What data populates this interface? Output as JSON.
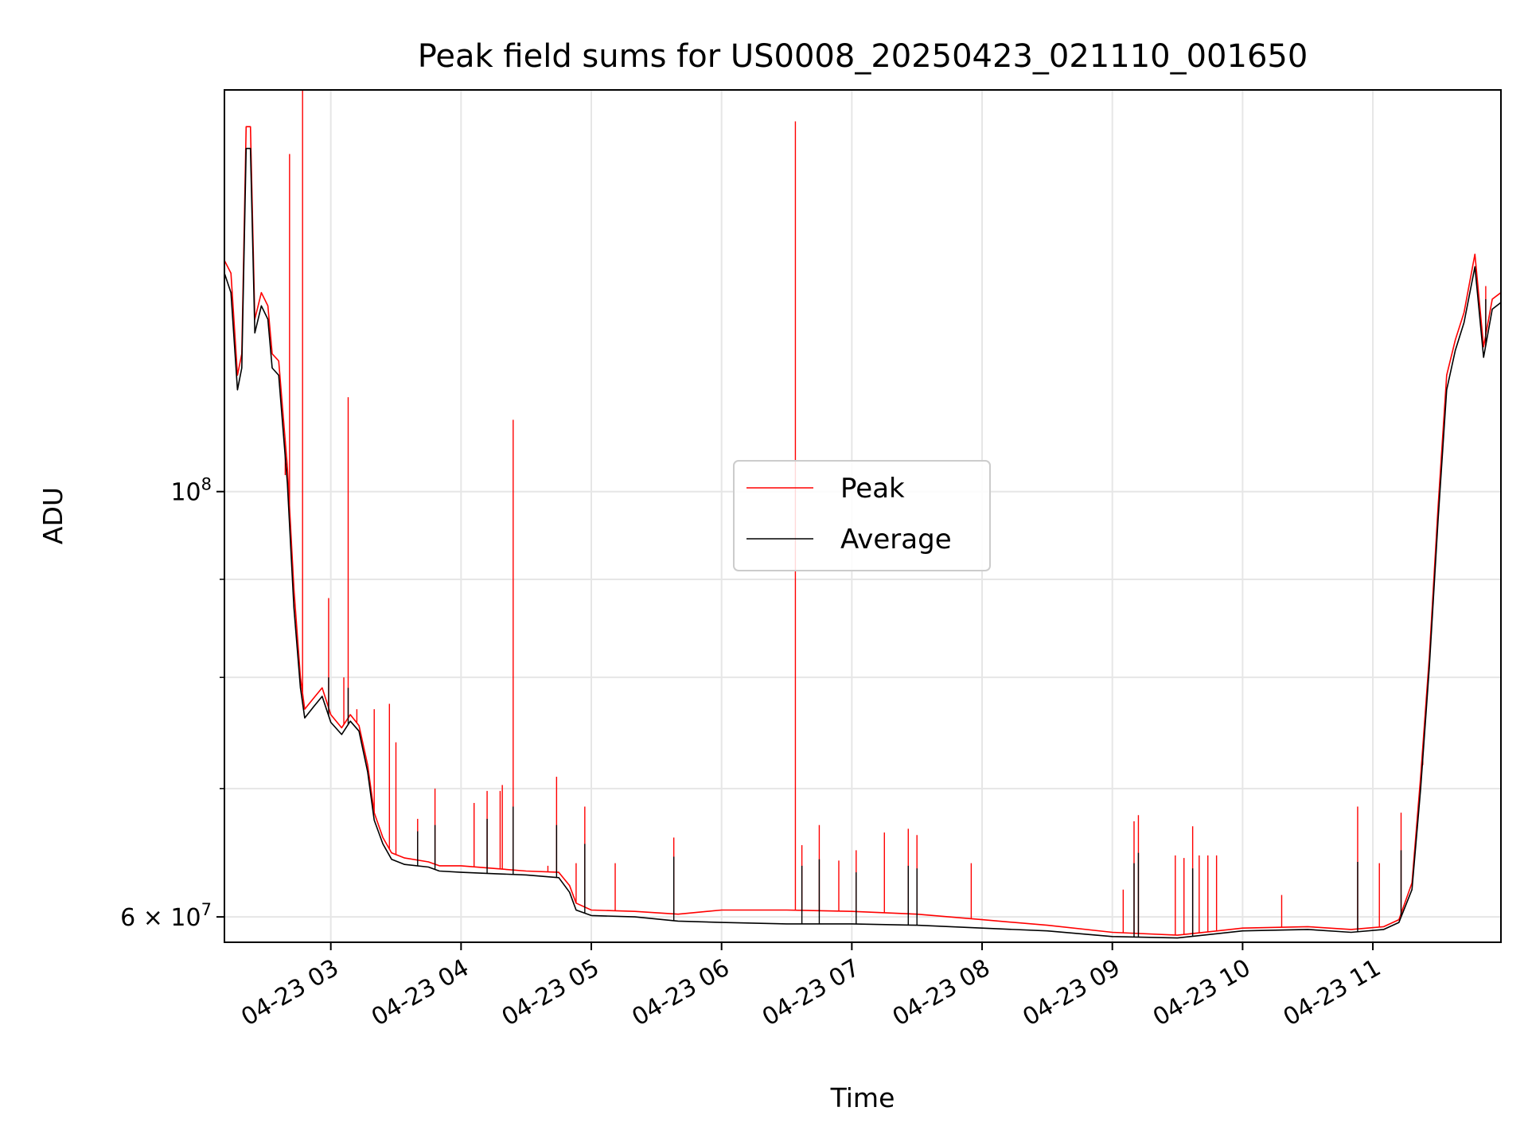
{
  "chart_data": {
    "type": "line",
    "title": "Peak field sums for US0008_20250423_021110_001650",
    "xlabel": "Time",
    "ylabel": "ADU",
    "y_scale": "log",
    "x_range": [
      "2025-04-23 02:11",
      "2025-04-23 11:59"
    ],
    "ylim": [
      58200000,
      162000000
    ],
    "grid": true,
    "legend_position": "center",
    "x_ticks": [
      {
        "t": "2025-04-23 03:00",
        "label": "04-23 03"
      },
      {
        "t": "2025-04-23 04:00",
        "label": "04-23 04"
      },
      {
        "t": "2025-04-23 05:00",
        "label": "04-23 05"
      },
      {
        "t": "2025-04-23 06:00",
        "label": "04-23 06"
      },
      {
        "t": "2025-04-23 07:00",
        "label": "04-23 07"
      },
      {
        "t": "2025-04-23 08:00",
        "label": "04-23 08"
      },
      {
        "t": "2025-04-23 09:00",
        "label": "04-23 09"
      },
      {
        "t": "2025-04-23 10:00",
        "label": "04-23 10"
      },
      {
        "t": "2025-04-23 11:00",
        "label": "04-23 11"
      }
    ],
    "y_ticks": [
      {
        "value": 100000000,
        "base": "10",
        "exp": "8"
      },
      {
        "value": 60000000,
        "coef": "6 × 10",
        "exp": "7"
      }
    ],
    "y_minor_ticks": [
      70000000,
      80000000,
      90000000
    ],
    "series": [
      {
        "name": "Peak",
        "color": "#ff0000",
        "points": [
          [
            "2025-04-23 02:11",
            132000000
          ],
          [
            "2025-04-23 02:14",
            130000000
          ],
          [
            "2025-04-23 02:17",
            115000000
          ],
          [
            "2025-04-23 02:19",
            118000000
          ],
          [
            "2025-04-23 02:21",
            155000000
          ],
          [
            "2025-04-23 02:23",
            155000000
          ],
          [
            "2025-04-23 02:25",
            123000000
          ],
          [
            "2025-04-23 02:28",
            127000000
          ],
          [
            "2025-04-23 02:31",
            125000000
          ],
          [
            "2025-04-23 02:33",
            118000000
          ],
          [
            "2025-04-23 02:36",
            117000000
          ],
          [
            "2025-04-23 02:40",
            103000000
          ],
          [
            "2025-04-23 02:43",
            89000000
          ],
          [
            "2025-04-23 02:46",
            80000000
          ],
          [
            "2025-04-23 02:48",
            77000000
          ],
          [
            "2025-04-23 02:52",
            78000000
          ],
          [
            "2025-04-23 02:56",
            79000000
          ],
          [
            "2025-04-23 03:00",
            76500000
          ],
          [
            "2025-04-23 03:05",
            75300000
          ],
          [
            "2025-04-23 03:09",
            76500000
          ],
          [
            "2025-04-23 03:13",
            75500000
          ],
          [
            "2025-04-23 03:17",
            72000000
          ],
          [
            "2025-04-23 03:20",
            68000000
          ],
          [
            "2025-04-23 03:24",
            66000000
          ],
          [
            "2025-04-23 03:28",
            64800000
          ],
          [
            "2025-04-23 03:34",
            64400000
          ],
          [
            "2025-04-23 03:45",
            64100000
          ],
          [
            "2025-04-23 03:50",
            63800000
          ],
          [
            "2025-04-23 04:00",
            63800000
          ],
          [
            "2025-04-23 04:15",
            63600000
          ],
          [
            "2025-04-23 04:30",
            63400000
          ],
          [
            "2025-04-23 04:45",
            63300000
          ],
          [
            "2025-04-23 04:50",
            62300000
          ],
          [
            "2025-04-23 04:53",
            61000000
          ],
          [
            "2025-04-23 05:00",
            60500000
          ],
          [
            "2025-04-23 05:20",
            60400000
          ],
          [
            "2025-04-23 05:40",
            60200000
          ],
          [
            "2025-04-23 06:00",
            60500000
          ],
          [
            "2025-04-23 06:30",
            60500000
          ],
          [
            "2025-04-23 07:00",
            60400000
          ],
          [
            "2025-04-23 07:30",
            60200000
          ],
          [
            "2025-04-23 08:00",
            59800000
          ],
          [
            "2025-04-23 08:30",
            59400000
          ],
          [
            "2025-04-23 09:00",
            58900000
          ],
          [
            "2025-04-23 09:30",
            58700000
          ],
          [
            "2025-04-23 10:00",
            59200000
          ],
          [
            "2025-04-23 10:30",
            59300000
          ],
          [
            "2025-04-23 10:50",
            59100000
          ],
          [
            "2025-04-23 11:05",
            59300000
          ],
          [
            "2025-04-23 11:12",
            59800000
          ],
          [
            "2025-04-23 11:18",
            62500000
          ],
          [
            "2025-04-23 11:22",
            71000000
          ],
          [
            "2025-04-23 11:26",
            82000000
          ],
          [
            "2025-04-23 11:30",
            98000000
          ],
          [
            "2025-04-23 11:34",
            115000000
          ],
          [
            "2025-04-23 11:38",
            120000000
          ],
          [
            "2025-04-23 11:42",
            124000000
          ],
          [
            "2025-04-23 11:47",
            133000000
          ],
          [
            "2025-04-23 11:51",
            119000000
          ],
          [
            "2025-04-23 11:55",
            126000000
          ],
          [
            "2025-04-23 11:59",
            127000000
          ]
        ],
        "spikes": [
          [
            "2025-04-23 02:39",
            102000000
          ],
          [
            "2025-04-23 02:41",
            150000000
          ],
          [
            "2025-04-23 02:47",
            162000000
          ],
          [
            "2025-04-23 02:59",
            88000000
          ],
          [
            "2025-04-23 03:06",
            80000000
          ],
          [
            "2025-04-23 03:08",
            112000000
          ],
          [
            "2025-04-23 03:12",
            77000000
          ],
          [
            "2025-04-23 03:20",
            77000000
          ],
          [
            "2025-04-23 03:27",
            77500000
          ],
          [
            "2025-04-23 03:30",
            74000000
          ],
          [
            "2025-04-23 03:40",
            67500000
          ],
          [
            "2025-04-23 03:48",
            70000000
          ],
          [
            "2025-04-23 04:06",
            68800000
          ],
          [
            "2025-04-23 04:12",
            69800000
          ],
          [
            "2025-04-23 04:18",
            69800000
          ],
          [
            "2025-04-23 04:19",
            70300000
          ],
          [
            "2025-04-23 04:24",
            109000000
          ],
          [
            "2025-04-23 04:40",
            63800000
          ],
          [
            "2025-04-23 04:44",
            71000000
          ],
          [
            "2025-04-23 04:53",
            64000000
          ],
          [
            "2025-04-23 04:57",
            68500000
          ],
          [
            "2025-04-23 05:11",
            64000000
          ],
          [
            "2025-04-23 05:38",
            66000000
          ],
          [
            "2025-04-23 06:34",
            156000000
          ],
          [
            "2025-04-23 06:37",
            65400000
          ],
          [
            "2025-04-23 06:45",
            67000000
          ],
          [
            "2025-04-23 06:54",
            64200000
          ],
          [
            "2025-04-23 07:02",
            65000000
          ],
          [
            "2025-04-23 07:15",
            66400000
          ],
          [
            "2025-04-23 07:26",
            66700000
          ],
          [
            "2025-04-23 07:30",
            66200000
          ],
          [
            "2025-04-23 07:55",
            64000000
          ],
          [
            "2025-04-23 09:05",
            62000000
          ],
          [
            "2025-04-23 09:10",
            67300000
          ],
          [
            "2025-04-23 09:12",
            67800000
          ],
          [
            "2025-04-23 09:29",
            64600000
          ],
          [
            "2025-04-23 09:33",
            64400000
          ],
          [
            "2025-04-23 09:37",
            66900000
          ],
          [
            "2025-04-23 09:40",
            64600000
          ],
          [
            "2025-04-23 09:44",
            64600000
          ],
          [
            "2025-04-23 09:48",
            64600000
          ],
          [
            "2025-04-23 10:18",
            61600000
          ],
          [
            "2025-04-23 10:53",
            68500000
          ],
          [
            "2025-04-23 11:03",
            64000000
          ],
          [
            "2025-04-23 11:13",
            68000000
          ],
          [
            "2025-04-23 11:23",
            72000000
          ],
          [
            "2025-04-23 11:52",
            128000000
          ]
        ]
      },
      {
        "name": "Average",
        "color": "#000000",
        "points": [
          [
            "2025-04-23 02:11",
            130000000
          ],
          [
            "2025-04-23 02:14",
            127000000
          ],
          [
            "2025-04-23 02:17",
            113000000
          ],
          [
            "2025-04-23 02:19",
            116000000
          ],
          [
            "2025-04-23 02:21",
            151000000
          ],
          [
            "2025-04-23 02:23",
            151000000
          ],
          [
            "2025-04-23 02:25",
            121000000
          ],
          [
            "2025-04-23 02:28",
            125000000
          ],
          [
            "2025-04-23 02:31",
            123000000
          ],
          [
            "2025-04-23 02:33",
            116000000
          ],
          [
            "2025-04-23 02:36",
            115000000
          ],
          [
            "2025-04-23 02:40",
            101000000
          ],
          [
            "2025-04-23 02:43",
            87000000
          ],
          [
            "2025-04-23 02:46",
            79000000
          ],
          [
            "2025-04-23 02:48",
            76200000
          ],
          [
            "2025-04-23 02:52",
            77200000
          ],
          [
            "2025-04-23 02:56",
            78200000
          ],
          [
            "2025-04-23 03:00",
            75800000
          ],
          [
            "2025-04-23 03:05",
            74700000
          ],
          [
            "2025-04-23 03:09",
            75900000
          ],
          [
            "2025-04-23 03:13",
            75000000
          ],
          [
            "2025-04-23 03:17",
            71400000
          ],
          [
            "2025-04-23 03:20",
            67400000
          ],
          [
            "2025-04-23 03:24",
            65500000
          ],
          [
            "2025-04-23 03:28",
            64300000
          ],
          [
            "2025-04-23 03:34",
            63900000
          ],
          [
            "2025-04-23 03:45",
            63700000
          ],
          [
            "2025-04-23 03:50",
            63400000
          ],
          [
            "2025-04-23 04:00",
            63300000
          ],
          [
            "2025-04-23 04:15",
            63200000
          ],
          [
            "2025-04-23 04:30",
            63100000
          ],
          [
            "2025-04-23 04:45",
            62900000
          ],
          [
            "2025-04-23 04:50",
            61800000
          ],
          [
            "2025-04-23 04:53",
            60500000
          ],
          [
            "2025-04-23 05:00",
            60100000
          ],
          [
            "2025-04-23 05:20",
            60000000
          ],
          [
            "2025-04-23 05:40",
            59700000
          ],
          [
            "2025-04-23 06:00",
            59600000
          ],
          [
            "2025-04-23 06:30",
            59500000
          ],
          [
            "2025-04-23 07:00",
            59500000
          ],
          [
            "2025-04-23 07:30",
            59400000
          ],
          [
            "2025-04-23 08:00",
            59200000
          ],
          [
            "2025-04-23 08:30",
            59000000
          ],
          [
            "2025-04-23 09:00",
            58600000
          ],
          [
            "2025-04-23 09:30",
            58500000
          ],
          [
            "2025-04-23 10:00",
            59000000
          ],
          [
            "2025-04-23 10:30",
            59100000
          ],
          [
            "2025-04-23 10:50",
            58900000
          ],
          [
            "2025-04-23 11:05",
            59100000
          ],
          [
            "2025-04-23 11:12",
            59600000
          ],
          [
            "2025-04-23 11:18",
            62000000
          ],
          [
            "2025-04-23 11:22",
            70000000
          ],
          [
            "2025-04-23 11:26",
            81000000
          ],
          [
            "2025-04-23 11:30",
            96500000
          ],
          [
            "2025-04-23 11:34",
            113000000
          ],
          [
            "2025-04-23 11:38",
            118500000
          ],
          [
            "2025-04-23 11:42",
            122500000
          ],
          [
            "2025-04-23 11:47",
            131000000
          ],
          [
            "2025-04-23 11:51",
            117500000
          ],
          [
            "2025-04-23 11:55",
            124500000
          ],
          [
            "2025-04-23 11:59",
            125500000
          ]
        ],
        "spikes": [
          [
            "2025-04-23 02:59",
            80000000
          ],
          [
            "2025-04-23 03:08",
            79000000
          ],
          [
            "2025-04-23 03:40",
            66500000
          ],
          [
            "2025-04-23 03:48",
            67000000
          ],
          [
            "2025-04-23 04:12",
            67500000
          ],
          [
            "2025-04-23 04:24",
            68500000
          ],
          [
            "2025-04-23 04:44",
            67000000
          ],
          [
            "2025-04-23 04:57",
            65500000
          ],
          [
            "2025-04-23 05:38",
            64500000
          ],
          [
            "2025-04-23 06:37",
            63800000
          ],
          [
            "2025-04-23 06:45",
            64300000
          ],
          [
            "2025-04-23 07:02",
            63300000
          ],
          [
            "2025-04-23 07:26",
            63800000
          ],
          [
            "2025-04-23 07:30",
            63600000
          ],
          [
            "2025-04-23 09:10",
            64000000
          ],
          [
            "2025-04-23 09:12",
            64800000
          ],
          [
            "2025-04-23 09:37",
            63600000
          ],
          [
            "2025-04-23 10:53",
            64100000
          ],
          [
            "2025-04-23 11:13",
            65000000
          ],
          [
            "2025-04-23 11:52",
            126000000
          ]
        ]
      }
    ]
  }
}
